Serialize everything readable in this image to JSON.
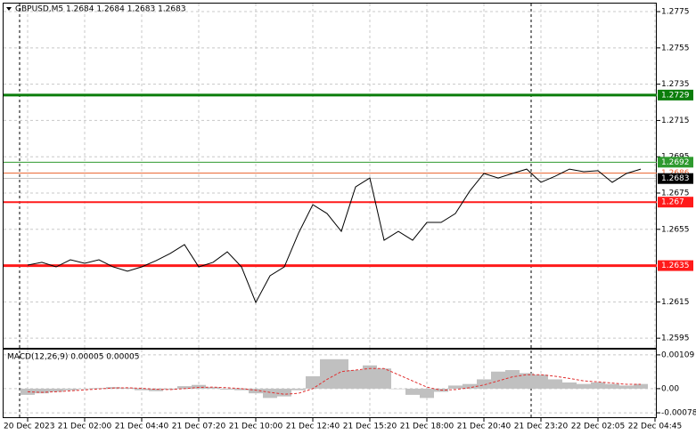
{
  "chart_data": [
    {
      "type": "line",
      "title": "GBPUSD,M5  1.2684 1.2684 1.2683 1.2683",
      "color": "#000000",
      "categories": [
        "20 Dec 2023",
        null,
        null,
        null,
        "21 Dec 02:00",
        null,
        null,
        null,
        "21 Dec 04:40",
        null,
        null,
        null,
        "21 Dec 07:20",
        null,
        null,
        null,
        "21 Dec 10:00",
        null,
        null,
        null,
        "21 Dec 12:40",
        null,
        null,
        null,
        "21 Dec 15:20",
        null,
        null,
        null,
        "21 Dec 18:00",
        null,
        null,
        null,
        "21 Dec 20:40",
        null,
        null,
        null,
        "21 Dec 23:20",
        null,
        null,
        null,
        "22 Dec 02:05",
        null,
        null,
        null,
        "22 Dec 04:45"
      ],
      "values": [
        1.26353,
        1.26368,
        1.26343,
        1.26382,
        1.26363,
        1.26382,
        1.26343,
        1.26319,
        1.26343,
        1.26377,
        1.26417,
        1.26466,
        1.26343,
        1.26368,
        1.26426,
        1.26343,
        1.26147,
        1.26294,
        1.26343,
        1.26529,
        1.26686,
        1.26637,
        1.26539,
        1.26784,
        1.26833,
        1.2649,
        1.26539,
        1.2649,
        1.26588,
        1.26588,
        1.26637,
        1.2676,
        1.26858,
        1.26833,
        1.26858,
        1.26882,
        1.26809,
        1.26843,
        1.26882,
        1.26868,
        1.26873,
        1.26809,
        1.26858,
        1.26882,
        null
      ],
      "ylim": [
        1.25892,
        1.27814
      ],
      "yticks": [
        1.2775,
        1.2755,
        1.2735,
        1.2715,
        1.2695,
        1.2675,
        1.2655,
        1.2615,
        1.2595
      ],
      "grid": true,
      "levels": [
        {
          "value": 1.2729,
          "color": "#0a7d0a"
        },
        {
          "value": 1.2692,
          "color": "#2e9a2e"
        },
        {
          "value": 1.2686,
          "color": "#e8602c"
        },
        {
          "value": 1.2683,
          "color": "#000000"
        },
        {
          "value": 1.267,
          "color": "#ff1a1a"
        },
        {
          "value": 1.2635,
          "color": "#ff1a1a"
        }
      ]
    },
    {
      "type": "macd",
      "title": "MACD(12,26,9) 0.00005 0.00005",
      "color": "#c0c0c0",
      "signal_color": "#e03030",
      "values": [
        -0.0002,
        -0.00015,
        -0.0001,
        -5e-05,
        0,
        2e-05,
        5e-05,
        3e-05,
        -5e-05,
        -8e-05,
        -3e-05,
        8e-05,
        0.00012,
        5e-05,
        -3e-05,
        -5e-05,
        -0.00015,
        -0.0003,
        -0.00025,
        -5e-05,
        0.0004,
        0.00095,
        0.00095,
        0.0006,
        0.00075,
        0.00065,
        0,
        -0.0002,
        -0.0003,
        -0.0001,
        0.0001,
        0.00015,
        0.0003,
        0.00055,
        0.0006,
        0.0005,
        0.00045,
        0.0003,
        0.0002,
        0.00015,
        0.0002,
        0.00015,
        0.0001,
        0.00015,
        null
      ],
      "signal": [
        -0.0001,
        -0.00012,
        -0.0001,
        -7e-05,
        -4e-05,
        -1e-05,
        2e-05,
        3e-05,
        1e-05,
        -2e-05,
        -3e-05,
        0,
        4e-05,
        5e-05,
        3e-05,
        0,
        -5e-05,
        -0.00012,
        -0.00018,
        -0.00015,
        0,
        0.0003,
        0.00055,
        0.0006,
        0.00065,
        0.00065,
        0.00045,
        0.00025,
        5e-05,
        -5e-05,
        -3e-05,
        3e-05,
        0.00012,
        0.00025,
        0.00038,
        0.00045,
        0.00045,
        0.0004,
        0.00033,
        0.00025,
        0.00022,
        0.00018,
        0.00014,
        0.00014,
        null
      ],
      "ylim": [
        -0.00095,
        0.00126
      ],
      "yticks": [
        0.00109,
        {
          "value": 0,
          "label": "0.00"
        },
        -0.00078
      ]
    }
  ]
}
